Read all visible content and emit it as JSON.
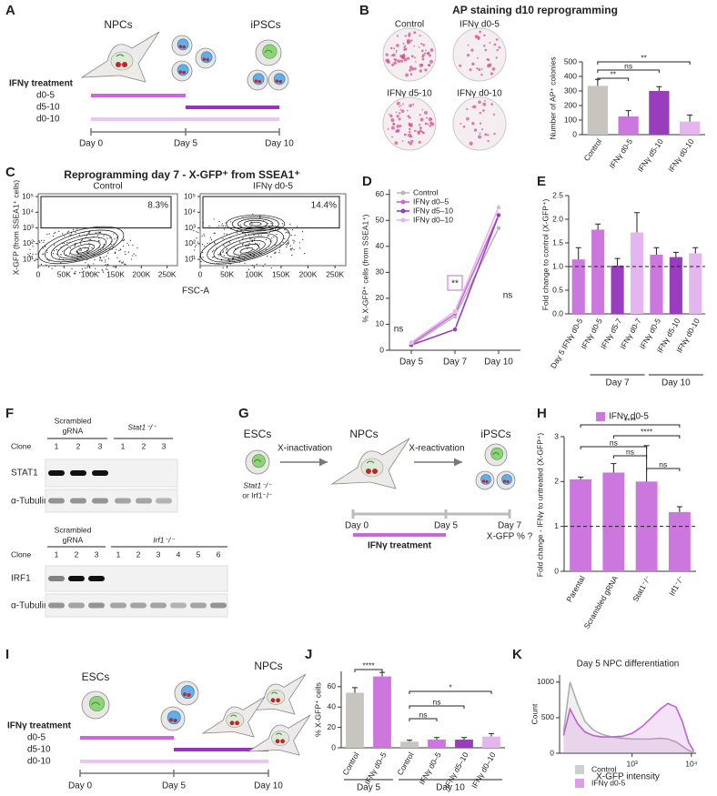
{
  "panel_labels": [
    "A",
    "B",
    "C",
    "D",
    "E",
    "F",
    "G",
    "H",
    "I",
    "J",
    "K"
  ],
  "panel_a": {
    "cells": [
      "NPCs",
      "iPSCs"
    ],
    "treatment": "IFNγ treatment",
    "conditions": [
      "d0-5",
      "d5-10",
      "d0-10"
    ],
    "days": [
      "Day 0",
      "Day 5",
      "Day 10"
    ]
  },
  "panel_b": {
    "wells": [
      "Control",
      "IFNγ d0-5",
      "IFNγ d5-10",
      "IFNγ d0-10"
    ]
  },
  "panel_f": {
    "top": {
      "group_a": [
        "Scrambled",
        "gRNA"
      ],
      "group_b": "Stat1⁻/⁻",
      "clone": "Clone",
      "clones": [
        "1",
        "2",
        "3",
        "1",
        "2",
        "3"
      ],
      "rows": [
        "STAT1",
        "α-Tubulin"
      ]
    },
    "bottom": {
      "group_a": [
        "Scrambled",
        "gRNA"
      ],
      "group_b": "Irf1⁻/⁻",
      "clone": "Clone",
      "clones": [
        "1",
        "2",
        "3",
        "1",
        "2",
        "3",
        "4",
        "5",
        "6"
      ],
      "rows": [
        "IRF1",
        "α-Tubulin"
      ]
    }
  },
  "panel_g": {
    "start": "ESCs",
    "genotype": [
      "Stat1⁻/⁻",
      "or Irf1⁻/⁻"
    ],
    "steps": [
      "X-inactivation",
      "X-reactivation"
    ],
    "cells": [
      "NPCs",
      "iPSCs"
    ],
    "days": [
      "Day 0",
      "Day 5",
      "Day 7"
    ],
    "readout": "X-GFP % ?",
    "treatment": "IFNγ treatment"
  },
  "panel_i": {
    "cells": [
      "ESCs",
      "NPCs"
    ],
    "treatment": "IFNγ treatment",
    "conditions": [
      "d0-5",
      "d5-10",
      "d0-10"
    ],
    "days": [
      "Day 0",
      "Day 5",
      "Day 10"
    ]
  },
  "chart_data": [
    {
      "type": "bar",
      "title": "AP staining d10 reprogramming",
      "ylabel": "Number of AP⁺ colonies",
      "categories": [
        "Control",
        "IFNγ d0-5",
        "IFNγ d5-10",
        "IFNγ d0-10"
      ],
      "values": [
        335,
        125,
        300,
        90
      ],
      "errors": [
        45,
        40,
        30,
        45
      ],
      "colors": [
        "#c8c4c0",
        "#cc77dd",
        "#9a3cbe",
        "#e4b6ef"
      ],
      "ylim": [
        0,
        500
      ],
      "yticks": [
        0,
        100,
        200,
        300,
        400,
        500
      ],
      "annotations": [
        "**",
        "ns",
        "**"
      ]
    },
    {
      "type": "contour",
      "title": "Reprogramming day 7 - X-GFP⁺ from SSEA1⁺",
      "panel_titles": [
        "Control",
        "IFNγ d0-5"
      ],
      "values": [
        8.3,
        14.4
      ],
      "value_labels": [
        "8.3%",
        "14.4%"
      ],
      "xlabel": "FSC-A",
      "ylabel": "X-GFP (from SSEA1⁺ cells)",
      "xlim": [
        0,
        270000
      ],
      "ylim": [
        4,
        150000
      ],
      "log_y": true,
      "xticks": [
        0,
        {
          "value": 50000,
          "label": "50K"
        },
        {
          "value": 100000,
          "label": "100K"
        },
        {
          "value": 150000,
          "label": "150K"
        },
        {
          "value": 200000,
          "label": "200K"
        },
        {
          "value": 250000,
          "label": "250K"
        }
      ],
      "yticks": [
        {
          "value": 10,
          "label": "10¹"
        },
        {
          "value": 100,
          "label": "10²"
        },
        {
          "value": 1000,
          "label": "10³"
        },
        {
          "value": 10000,
          "label": "10⁴"
        },
        {
          "value": 100000,
          "label": "10⁵"
        }
      ]
    },
    {
      "type": "line",
      "categories": [
        "Day 5",
        "Day 7",
        "Day 10"
      ],
      "ylabel": "% X-GFP⁺ cells (from SSEA1⁺)",
      "ylim": [
        0,
        62
      ],
      "yticks": [
        0,
        10,
        20,
        30,
        40,
        50,
        60
      ],
      "series": [
        {
          "name": "Control",
          "color": "#b8b8b8",
          "values": [
            2,
            13,
            47
          ]
        },
        {
          "name": "IFNγ d0–5",
          "color": "#c668d8",
          "values": [
            2.5,
            14,
            52
          ]
        },
        {
          "name": "IFNγ d5–10",
          "color": "#9a3cbe",
          "values": [
            2,
            8,
            52
          ]
        },
        {
          "name": "IFNγ d0–10",
          "color": "#e6b3ef",
          "values": [
            3,
            15,
            55
          ]
        }
      ],
      "annotations": [
        "ns",
        "**",
        "ns"
      ]
    },
    {
      "type": "bar",
      "ylabel": "Fold change to control (X-GFP⁺)",
      "categories": [
        "Day 5 IFNγ d0-5",
        "IFNγ d0-5",
        "IFNγ d5-7",
        "IFNγ d0-7",
        "IFNγ d0-5",
        "IFNγ d5-10",
        "IFNγ d0-10"
      ],
      "values": [
        1.15,
        1.78,
        1.02,
        1.72,
        1.25,
        1.2,
        1.28
      ],
      "errors": [
        0.25,
        0.12,
        0.15,
        0.42,
        0.15,
        0.1,
        0.12
      ],
      "colors": [
        "#cc77dd",
        "#cc77dd",
        "#9a3cbe",
        "#e4b6ef",
        "#cc77dd",
        "#9a3cbe",
        "#e4b6ef"
      ],
      "reference": 1,
      "ylim": [
        0,
        2.5
      ],
      "yticks": [
        {
          "value": 0,
          "label": "0.0"
        },
        0.5,
        {
          "value": 1,
          "label": "1.0"
        },
        1.5,
        {
          "value": 2,
          "label": "2.0"
        },
        2.5
      ],
      "groups": [
        "Day 7",
        "Day 10"
      ]
    },
    {
      "type": "bar",
      "legend": "IFNγ d0-5",
      "color": "#cc77dd",
      "ylabel": "Fold change - IFNγ to untreated (X-GFP⁺)",
      "categories": [
        "Parental",
        "Scrambled gRNA",
        "Stat1⁻/⁻",
        "Irf1⁻/⁻"
      ],
      "values": [
        2.05,
        2.2,
        2.0,
        1.32
      ],
      "errors": [
        0.05,
        0.2,
        0.8,
        0.12
      ],
      "reference": 1,
      "ylim": [
        0,
        3
      ],
      "yticks": [
        0,
        1,
        2,
        3
      ],
      "annotations": [
        "****",
        "****",
        "ns",
        "ns",
        "ns"
      ]
    },
    {
      "type": "bar",
      "ylabel": "% X-GFP⁺ cells",
      "categories": [
        "Control",
        "IFNγ d0–5",
        "Control",
        "IFNγ d0–5",
        "IFNγ d5–10",
        "IFNγ d0–10"
      ],
      "values": [
        54,
        70,
        6,
        8,
        8,
        11
      ],
      "errors": [
        5,
        4,
        1.5,
        2,
        2,
        3
      ],
      "colors": [
        "#c8c4c0",
        "#cc77dd",
        "#c8c4c0",
        "#cc77dd",
        "#9a3cbe",
        "#e4b6ef"
      ],
      "ylim": [
        0,
        75
      ],
      "yticks": [
        0,
        20,
        40,
        60
      ],
      "groups": [
        "Day 5",
        "Day 10"
      ],
      "annotations": [
        "****",
        "ns",
        "ns",
        "*"
      ]
    },
    {
      "type": "line",
      "title": "Day 5 NPC differentiation",
      "xlabel": "X-GFP intensity",
      "ylabel": "Count",
      "log_x": true,
      "xlim": [
        60,
        12000
      ],
      "xticks": [
        {
          "value": 1000,
          "label": "10³"
        },
        {
          "value": 10000,
          "label": "10⁴"
        }
      ],
      "ylim": [
        0,
        1100
      ],
      "yticks": [
        0,
        500,
        1000
      ],
      "x": [
        70,
        90,
        120,
        160,
        220,
        300,
        450,
        700,
        1000,
        1500,
        2000,
        3000,
        4000,
        5500,
        7000,
        9000,
        11000
      ],
      "series": [
        {
          "name": "Control",
          "color": "#b0aeae",
          "values": [
            300,
            1000,
            700,
            450,
            330,
            270,
            230,
            210,
            200,
            200,
            200,
            210,
            200,
            160,
            100,
            40,
            10
          ]
        },
        {
          "name": "IFNγ d0-5",
          "color": "#c060d8",
          "values": [
            250,
            620,
            420,
            300,
            250,
            230,
            230,
            240,
            280,
            380,
            480,
            620,
            700,
            650,
            450,
            150,
            30
          ]
        }
      ]
    }
  ]
}
